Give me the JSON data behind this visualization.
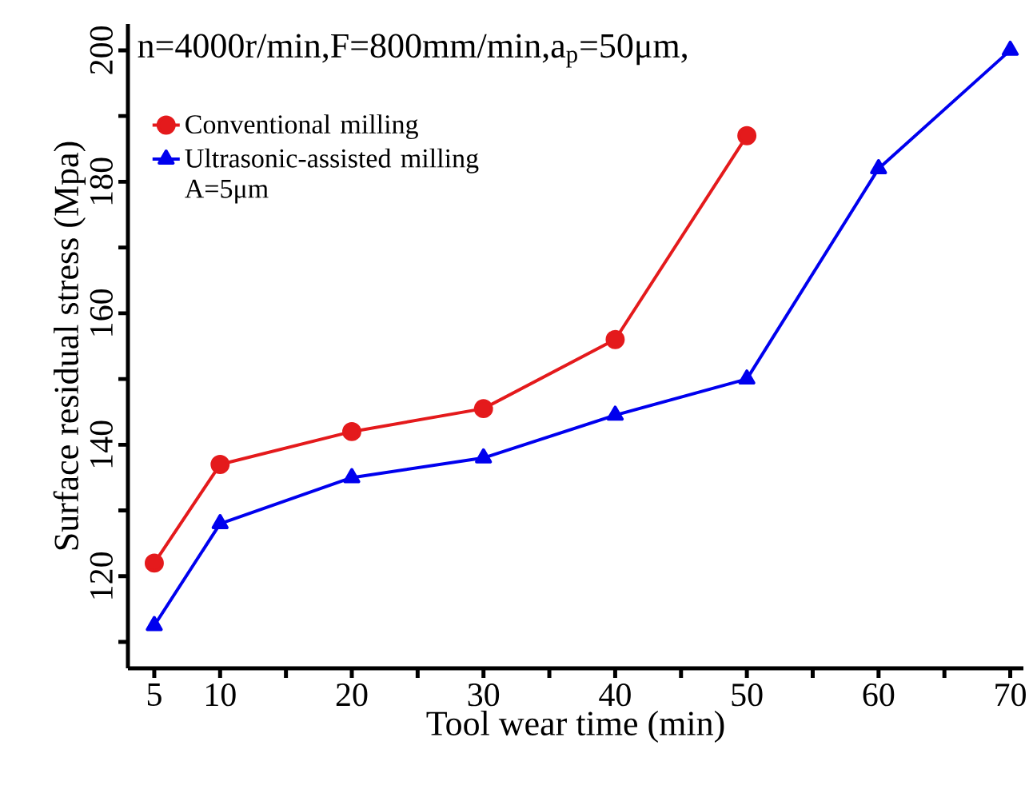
{
  "chart_data": {
    "type": "line",
    "xlabel": "Tool wear time (min)",
    "ylabel": "Surface residual stress (Mpa)",
    "annotations": [
      "n=4000r/min,F=800mm/min,a$_{p}$=50μm,"
    ],
    "series": [
      {
        "name": "Conventional milling",
        "color": "#e41a1c",
        "marker": "circle",
        "x": [
          5,
          10,
          20,
          30,
          40,
          50
        ],
        "values": [
          122,
          137,
          142,
          145.5,
          156,
          187
        ]
      },
      {
        "name": "Ultrasonic-assisted milling A=5μm",
        "color": "#0000ee",
        "marker": "triangle",
        "x": [
          5,
          10,
          20,
          30,
          40,
          50,
          60,
          70
        ],
        "values": [
          112.5,
          128,
          135,
          138,
          144.5,
          150,
          182,
          200
        ]
      }
    ],
    "xlim": [
      3,
      71
    ],
    "ylim": [
      106,
      204
    ],
    "xticks": [
      5,
      10,
      {
        "value": 15,
        "label": null
      },
      20,
      {
        "value": 25,
        "label": null
      },
      30,
      {
        "value": 35,
        "label": null
      },
      40,
      {
        "value": 45,
        "label": null
      },
      50,
      {
        "value": 55,
        "label": null
      },
      60,
      {
        "value": 65,
        "label": null
      },
      70
    ],
    "yticks": [
      {
        "value": 110,
        "label": null
      },
      120,
      {
        "value": 130,
        "label": null
      },
      140,
      {
        "value": 150,
        "label": null
      },
      160,
      {
        "value": 170,
        "label": null
      },
      180,
      {
        "value": 190,
        "label": null
      },
      200
    ],
    "legend": "top left",
    "grid": false,
    "line_style": "solid"
  }
}
